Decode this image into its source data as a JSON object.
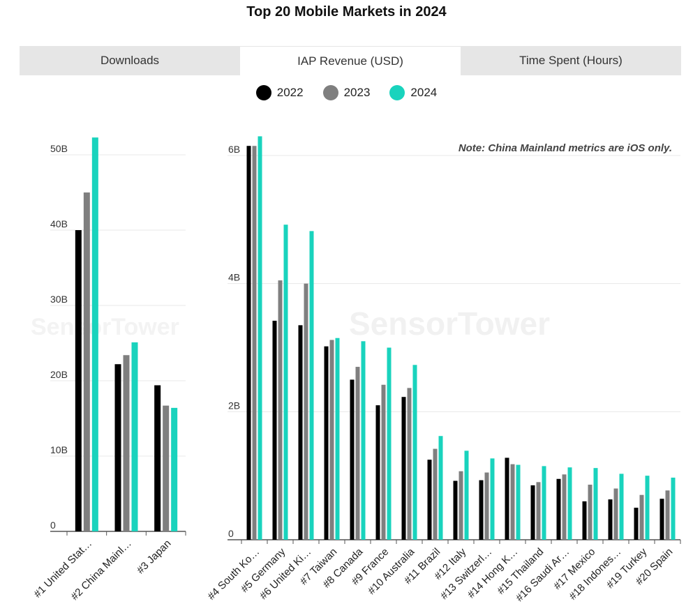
{
  "title": "Top 20 Mobile Markets in 2024",
  "tabs": [
    {
      "label": "Downloads",
      "active": false
    },
    {
      "label": "IAP Revenue (USD)",
      "active": true
    },
    {
      "label": "Time Spent (Hours)",
      "active": false
    }
  ],
  "legend": [
    {
      "label": "2022",
      "color": "#000000"
    },
    {
      "label": "2023",
      "color": "#7f7f7f"
    },
    {
      "label": "2024",
      "color": "#19d3bd"
    }
  ],
  "note": "Note: China Mainland metrics are iOS only.",
  "watermark": "SensorTower",
  "chart_data": [
    {
      "type": "bar",
      "categories": [
        "#1 United Stat…",
        "#2 China Mainl…",
        "#3 Japan"
      ],
      "yticks": [
        "0",
        "10B",
        "20B",
        "30B",
        "40B",
        "50B"
      ],
      "ylim": [
        0,
        55
      ],
      "unit": "B",
      "series": [
        {
          "name": "2022",
          "color": "#000000",
          "values": [
            40.0,
            22.2,
            19.4
          ]
        },
        {
          "name": "2023",
          "color": "#7f7f7f",
          "values": [
            45.0,
            23.4,
            16.7
          ]
        },
        {
          "name": "2024",
          "color": "#19d3bd",
          "values": [
            52.3,
            25.1,
            16.4
          ]
        }
      ]
    },
    {
      "type": "bar",
      "categories": [
        "#4 South Ko…",
        "#5 Germany",
        "#6 United Ki…",
        "#7 Taiwan",
        "#8 Canada",
        "#9 France",
        "#10 Australia",
        "#11 Brazil",
        "#12 Italy",
        "#13 Switzerl…",
        "#14 Hong K…",
        "#15 Thailand",
        "#16 Saudi Ar…",
        "#17 Mexico",
        "#18 Indones…",
        "#19 Turkey",
        "#20 Spain"
      ],
      "yticks": [
        "0",
        "2B",
        "4B",
        "6B"
      ],
      "ylim": [
        0,
        6.3
      ],
      "unit": "B",
      "series": [
        {
          "name": "2022",
          "color": "#000000",
          "values": [
            6.15,
            3.42,
            3.35,
            3.02,
            2.5,
            2.1,
            2.23,
            1.25,
            0.92,
            0.93,
            1.28,
            0.85,
            0.95,
            0.6,
            0.63,
            0.5,
            0.64
          ]
        },
        {
          "name": "2023",
          "color": "#7f7f7f",
          "values": [
            6.15,
            4.05,
            4.0,
            3.12,
            2.7,
            2.42,
            2.37,
            1.42,
            1.07,
            1.05,
            1.18,
            0.9,
            1.02,
            0.86,
            0.8,
            0.7,
            0.77
          ]
        },
        {
          "name": "2024",
          "color": "#19d3bd",
          "values": [
            6.3,
            4.92,
            4.82,
            3.15,
            3.1,
            3.0,
            2.73,
            1.62,
            1.39,
            1.27,
            1.17,
            1.15,
            1.13,
            1.12,
            1.03,
            1.0,
            0.97
          ]
        }
      ]
    }
  ]
}
